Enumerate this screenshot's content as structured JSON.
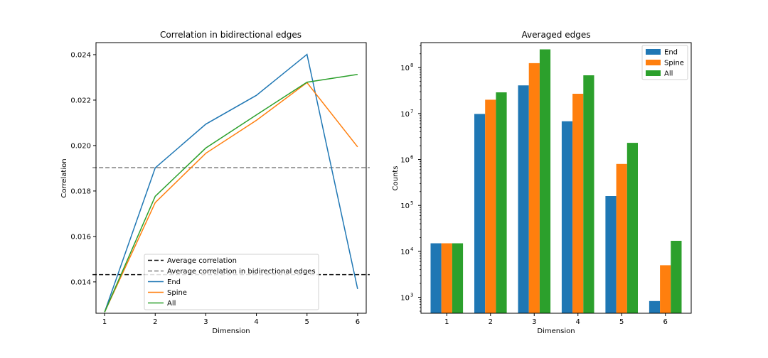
{
  "chart_data": [
    {
      "type": "line",
      "title": "Correlation in bidirectional edges",
      "xlabel": "Dimension",
      "ylabel": "Correlation",
      "xlim": [
        0.83,
        6.17
      ],
      "ylim": [
        0.01262,
        0.02453
      ],
      "x_ticks": [
        1,
        2,
        3,
        4,
        5,
        6
      ],
      "y_ticks": [
        0.014,
        0.016,
        0.018,
        0.02,
        0.022,
        0.024
      ],
      "y_tick_labels": [
        "0.014",
        "0.016",
        "0.018",
        "0.020",
        "0.022",
        "0.024"
      ],
      "x": [
        1,
        2,
        3,
        4,
        5,
        6
      ],
      "series": [
        {
          "name": "End",
          "values": [
            0.01267,
            0.01902,
            0.02094,
            0.02221,
            0.02401,
            0.01369
          ],
          "color": "#1f77b4"
        },
        {
          "name": "Spine",
          "values": [
            0.01267,
            0.01749,
            0.01966,
            0.02111,
            0.02277,
            0.01994
          ],
          "color": "#ff7f0e"
        },
        {
          "name": "All",
          "values": [
            0.01267,
            0.01777,
            0.01989,
            0.02135,
            0.02279,
            0.02313
          ],
          "color": "#2ca02c"
        }
      ],
      "hlines": [
        {
          "name": "Average correlation",
          "value": 0.01432,
          "color": "#111111"
        },
        {
          "name": "Average correlation in bidirectional edges",
          "value": 0.01903,
          "color": "#808080"
        }
      ],
      "legend_order": [
        "Average correlation",
        "Average correlation in bidirectional edges",
        "End",
        "Spine",
        "All"
      ],
      "legend_position": "lower-right",
      "grid": false
    },
    {
      "type": "bar",
      "title": "Averaged edges",
      "xlabel": "Dimension",
      "ylabel": "Counts",
      "y_scale": "log",
      "ylim": [
        450,
        350000000
      ],
      "categories": [
        "1",
        "2",
        "3",
        "4",
        "5",
        "6"
      ],
      "y_ticks": [
        1000,
        10000,
        100000,
        1000000,
        10000000,
        100000000
      ],
      "y_tick_exponents": [
        "3",
        "4",
        "5",
        "6",
        "7",
        "8"
      ],
      "y_tick_base": "10",
      "series": [
        {
          "name": "End",
          "values": [
            15000,
            9800000,
            41000000,
            6800000,
            160000,
            830
          ],
          "color": "#1f77b4"
        },
        {
          "name": "Spine",
          "values": [
            15000,
            20000000,
            125000000,
            27000000,
            800000,
            5000
          ],
          "color": "#ff7f0e"
        },
        {
          "name": "All",
          "values": [
            15000,
            29000000,
            250000000,
            68000000,
            2300000,
            17000
          ],
          "color": "#2ca02c"
        }
      ],
      "legend_position": "top-right",
      "grid": false
    }
  ]
}
